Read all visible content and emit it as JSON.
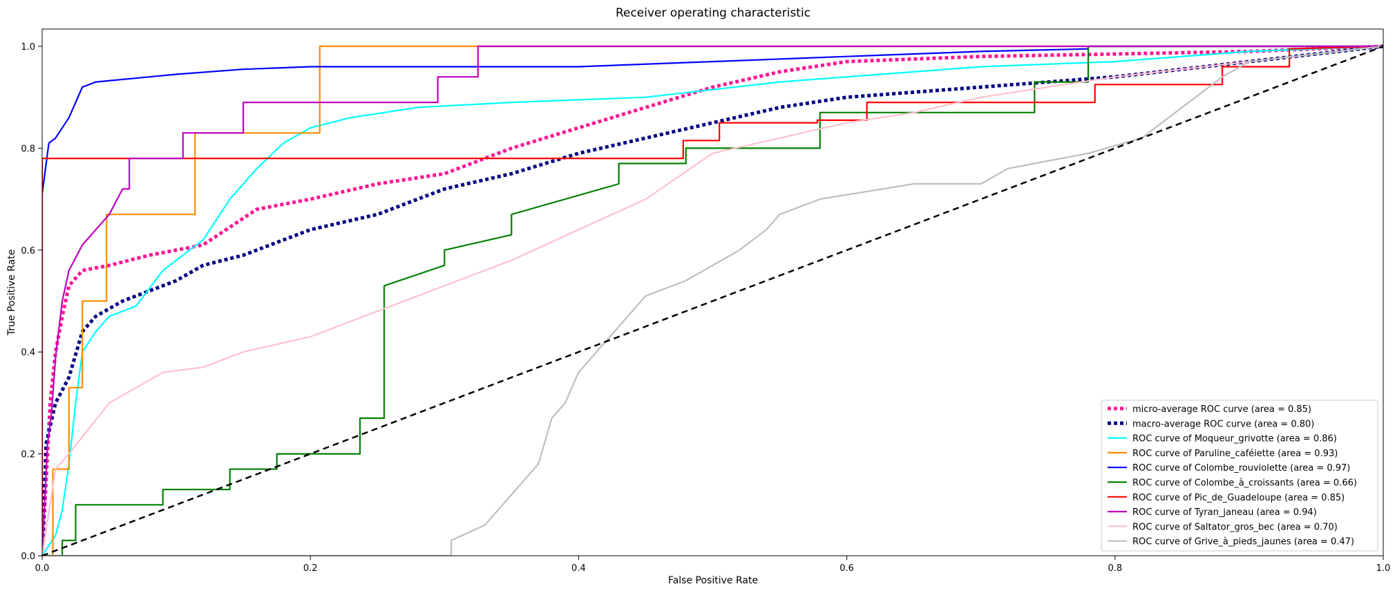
{
  "chart_data": {
    "type": "line",
    "title": "Receiver operating characteristic",
    "xlabel": "False Positive Rate",
    "ylabel": "True Positive Rate",
    "xlim": [
      0.0,
      1.0
    ],
    "ylim": [
      0.0,
      1.05
    ],
    "x_ticks": [
      "0.0",
      "0.2",
      "0.4",
      "0.6",
      "0.8",
      "1.0"
    ],
    "y_ticks": [
      "0.0",
      "0.2",
      "0.4",
      "0.6",
      "0.8",
      "1.0"
    ],
    "legend_position": "lower-right",
    "diagonal": {
      "color": "#000000",
      "x": [
        0,
        1
      ],
      "y": [
        0,
        1
      ]
    },
    "series": [
      {
        "name": "micro-average ROC curve (area = 0.85)",
        "color": "#ff1493",
        "style": "dotted",
        "x": [
          0,
          0.002,
          0.004,
          0.006,
          0.01,
          0.015,
          0.02,
          0.03,
          0.05,
          0.08,
          0.12,
          0.16,
          0.2,
          0.25,
          0.3,
          0.35,
          0.4,
          0.45,
          0.5,
          0.55,
          0.6,
          0.7,
          0.8,
          0.9,
          1.0
        ],
        "y": [
          0,
          0.1,
          0.2,
          0.3,
          0.4,
          0.47,
          0.53,
          0.56,
          0.57,
          0.59,
          0.61,
          0.68,
          0.7,
          0.73,
          0.75,
          0.8,
          0.84,
          0.88,
          0.92,
          0.95,
          0.97,
          0.98,
          0.985,
          0.99,
          1.0
        ]
      },
      {
        "name": "macro-average ROC curve (area = 0.80)",
        "color": "#000080",
        "style": "dotted",
        "x": [
          0,
          0.003,
          0.01,
          0.02,
          0.03,
          0.04,
          0.06,
          0.08,
          0.1,
          0.12,
          0.15,
          0.2,
          0.25,
          0.3,
          0.35,
          0.4,
          0.45,
          0.5,
          0.55,
          0.6,
          0.7,
          0.8,
          0.9,
          1.0
        ],
        "y": [
          0,
          0.22,
          0.3,
          0.35,
          0.44,
          0.47,
          0.5,
          0.52,
          0.54,
          0.57,
          0.59,
          0.64,
          0.67,
          0.72,
          0.75,
          0.79,
          0.82,
          0.85,
          0.88,
          0.9,
          0.92,
          0.94,
          0.97,
          1.0
        ]
      },
      {
        "name": "ROC curve of Moqueur_grivotte (area = 0.86)",
        "color": "#00ffff",
        "style": "solid",
        "x": [
          0,
          0.01,
          0.015,
          0.02,
          0.025,
          0.03,
          0.04,
          0.05,
          0.07,
          0.09,
          0.12,
          0.14,
          0.16,
          0.18,
          0.2,
          0.23,
          0.28,
          0.35,
          0.45,
          0.55,
          0.7,
          0.8,
          0.9,
          1.0
        ],
        "y": [
          0,
          0.04,
          0.09,
          0.18,
          0.3,
          0.4,
          0.44,
          0.47,
          0.49,
          0.56,
          0.62,
          0.7,
          0.76,
          0.81,
          0.84,
          0.86,
          0.88,
          0.89,
          0.9,
          0.93,
          0.96,
          0.97,
          0.99,
          1.0
        ]
      },
      {
        "name": "ROC curve of Paruline_caféiette (area = 0.93)",
        "color": "#ff8c00",
        "style": "solid",
        "x": [
          0,
          0.008,
          0.008,
          0.02,
          0.02,
          0.03,
          0.03,
          0.048,
          0.048,
          0.114,
          0.114,
          0.14,
          0.14,
          0.207,
          0.207,
          0.32,
          0.32,
          1.0
        ],
        "y": [
          0,
          0,
          0.17,
          0.17,
          0.33,
          0.33,
          0.5,
          0.5,
          0.67,
          0.67,
          0.83,
          0.83,
          0.83,
          0.83,
          1.0,
          1.0,
          1.0,
          1.0
        ]
      },
      {
        "name": "ROC curve of Colombe_rouviolette (area = 0.97)",
        "color": "#0000ff",
        "style": "solid",
        "x": [
          0,
          0,
          0.005,
          0.01,
          0.02,
          0.03,
          0.04,
          0.08,
          0.1,
          0.15,
          0.2,
          0.3,
          0.4,
          0.5,
          0.6,
          0.7,
          0.78,
          0.78,
          1.0
        ],
        "y": [
          0,
          0.71,
          0.81,
          0.82,
          0.86,
          0.92,
          0.93,
          0.94,
          0.945,
          0.955,
          0.96,
          0.96,
          0.96,
          0.97,
          0.98,
          0.99,
          0.995,
          1.0,
          1.0
        ]
      },
      {
        "name": "ROC curve of Colombe_à_croissants (area = 0.66)",
        "color": "#008000",
        "style": "solid",
        "x": [
          0,
          0.015,
          0.015,
          0.025,
          0.025,
          0.035,
          0.035,
          0.09,
          0.09,
          0.14,
          0.14,
          0.175,
          0.175,
          0.237,
          0.237,
          0.255,
          0.255,
          0.3,
          0.3,
          0.35,
          0.35,
          0.43,
          0.43,
          0.48,
          0.48,
          0.58,
          0.58,
          0.74,
          0.74,
          0.78,
          0.78,
          1.0
        ],
        "y": [
          0,
          0,
          0.03,
          0.03,
          0.1,
          0.1,
          0.1,
          0.1,
          0.13,
          0.13,
          0.17,
          0.17,
          0.2,
          0.2,
          0.27,
          0.27,
          0.53,
          0.57,
          0.6,
          0.63,
          0.67,
          0.73,
          0.77,
          0.77,
          0.8,
          0.8,
          0.87,
          0.87,
          0.93,
          0.93,
          1.0,
          1.0
        ]
      },
      {
        "name": "ROC curve of Pic_de_Guadeloupe (area = 0.85)",
        "color": "#ff0000",
        "style": "solid",
        "x": [
          0,
          0,
          0.2,
          0.4,
          0.478,
          0.478,
          0.505,
          0.505,
          0.578,
          0.578,
          0.615,
          0.615,
          0.785,
          0.785,
          0.88,
          0.88,
          0.93,
          0.93,
          1.0
        ],
        "y": [
          0,
          0.78,
          0.78,
          0.78,
          0.78,
          0.815,
          0.815,
          0.85,
          0.85,
          0.855,
          0.855,
          0.89,
          0.89,
          0.925,
          0.925,
          0.96,
          0.96,
          0.995,
          1.0
        ]
      },
      {
        "name": "ROC curve of Tyran_janeau (area = 0.94)",
        "color": "#bf00bf",
        "style": "solid",
        "x": [
          0,
          0.004,
          0.007,
          0.01,
          0.015,
          0.02,
          0.03,
          0.05,
          0.06,
          0.065,
          0.065,
          0.105,
          0.105,
          0.15,
          0.15,
          0.295,
          0.295,
          0.325,
          0.325,
          1.0
        ],
        "y": [
          0,
          0.22,
          0.28,
          0.39,
          0.5,
          0.56,
          0.61,
          0.67,
          0.72,
          0.72,
          0.78,
          0.78,
          0.83,
          0.83,
          0.89,
          0.89,
          0.94,
          0.94,
          1.0,
          1.0
        ]
      },
      {
        "name": "ROC curve of Saltator_gros_bec (area = 0.70)",
        "color": "#ffc0cb",
        "style": "solid",
        "x": [
          0,
          0.01,
          0.02,
          0.035,
          0.05,
          0.07,
          0.09,
          0.12,
          0.15,
          0.2,
          0.25,
          0.3,
          0.35,
          0.4,
          0.45,
          0.5,
          0.55,
          0.6,
          0.65,
          0.7,
          0.8,
          0.9,
          1.0
        ],
        "y": [
          0,
          0.17,
          0.2,
          0.25,
          0.3,
          0.33,
          0.36,
          0.37,
          0.4,
          0.43,
          0.48,
          0.53,
          0.58,
          0.64,
          0.7,
          0.79,
          0.82,
          0.85,
          0.87,
          0.9,
          0.94,
          0.97,
          1.0
        ]
      },
      {
        "name": "ROC curve of Grive_à_pieds_jaunes (area = 0.47)",
        "color": "#bebebe",
        "style": "solid",
        "x": [
          0,
          0.305,
          0.305,
          0.33,
          0.35,
          0.37,
          0.38,
          0.39,
          0.4,
          0.42,
          0.45,
          0.48,
          0.5,
          0.52,
          0.54,
          0.55,
          0.58,
          0.65,
          0.7,
          0.72,
          0.78,
          0.82,
          0.85,
          0.88,
          0.9,
          1.0
        ],
        "y": [
          0,
          0,
          0.03,
          0.06,
          0.12,
          0.18,
          0.27,
          0.3,
          0.36,
          0.42,
          0.51,
          0.54,
          0.57,
          0.6,
          0.64,
          0.67,
          0.7,
          0.73,
          0.73,
          0.76,
          0.79,
          0.82,
          0.88,
          0.94,
          0.97,
          1.0
        ]
      }
    ]
  }
}
